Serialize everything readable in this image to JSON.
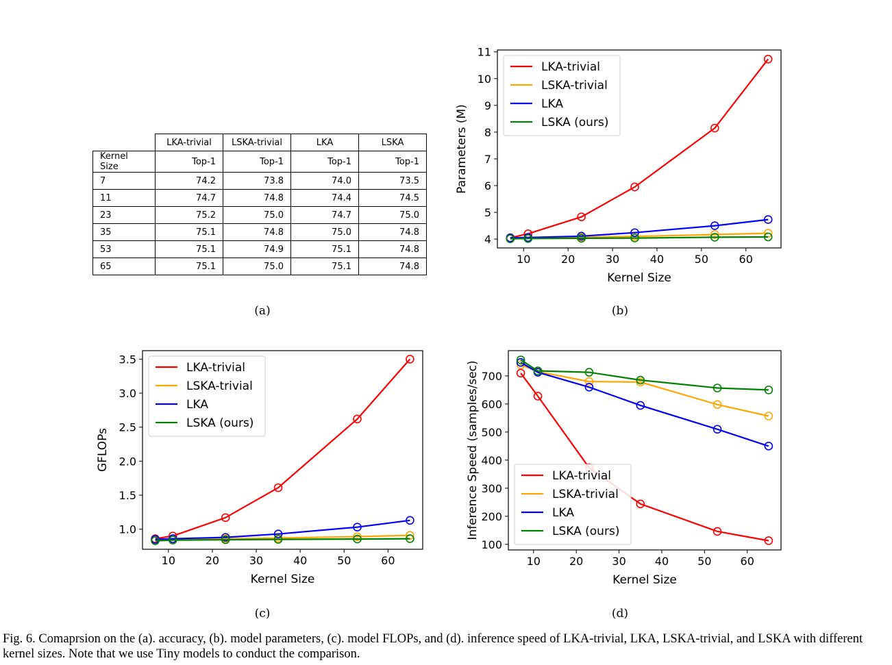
{
  "table": {
    "header": [
      "",
      "LKA-trivial",
      "LSKA-trivial",
      "LKA",
      "LSKA"
    ],
    "subheader": [
      "Kernel Size",
      "Top-1",
      "Top-1",
      "Top-1",
      "Top-1"
    ],
    "rows": [
      [
        "7",
        "74.2",
        "73.8",
        "74.0",
        "73.5"
      ],
      [
        "11",
        "74.7",
        "74.8",
        "74.4",
        "74.5"
      ],
      [
        "23",
        "75.2",
        "75.0",
        "74.7",
        "75.0"
      ],
      [
        "35",
        "75.1",
        "74.8",
        "75.0",
        "74.8"
      ],
      [
        "53",
        "75.1",
        "74.9",
        "75.1",
        "74.8"
      ],
      [
        "65",
        "75.1",
        "75.0",
        "75.1",
        "74.8"
      ]
    ]
  },
  "subfig_labels": {
    "a": "(a)",
    "b": "(b)",
    "c": "(c)",
    "d": "(d)"
  },
  "caption": "Fig. 6.  Comaprsion on the (a). accuracy, (b). model parameters, (c). model FLOPs, and (d). inference speed of LKA-trivial, LKA, LSKA-trivial, and LSKA with different kernel sizes. Note that we use Tiny models to conduct the comparison.",
  "colors": {
    "LKA-trivial": "#ff0000",
    "LSKA-trivial": "#ffa500",
    "LKA": "#0000ff",
    "LSKA (ours)": "#008000"
  },
  "chart_data": [
    {
      "id": "b",
      "type": "line",
      "title": "",
      "xlabel": "Kernel Size",
      "ylabel": "Parameters (M)",
      "x": [
        7,
        11,
        23,
        35,
        53,
        65
      ],
      "xlim": [
        4.1,
        67.9
      ],
      "ylim": [
        3.67,
        11.07
      ],
      "xticks": [
        10,
        20,
        30,
        40,
        50,
        60
      ],
      "yticks": [
        4,
        5,
        6,
        7,
        8,
        9,
        10,
        11
      ],
      "legend": "top-left",
      "series": [
        {
          "name": "LKA-trivial",
          "values": [
            4.05,
            4.2,
            4.83,
            5.95,
            8.15,
            10.73
          ]
        },
        {
          "name": "LSKA-trivial",
          "values": [
            4.02,
            4.04,
            4.07,
            4.1,
            4.17,
            4.22
          ]
        },
        {
          "name": "LKA",
          "values": [
            4.05,
            4.06,
            4.11,
            4.24,
            4.5,
            4.73
          ]
        },
        {
          "name": "LSKA (ours)",
          "values": [
            4.01,
            4.02,
            4.03,
            4.04,
            4.07,
            4.08
          ]
        }
      ]
    },
    {
      "id": "c",
      "type": "line",
      "title": "",
      "xlabel": "Kernel Size",
      "ylabel": "GFLOPs",
      "x": [
        7,
        11,
        23,
        35,
        53,
        65
      ],
      "xlim": [
        4.1,
        67.9
      ],
      "ylim": [
        0.705,
        3.625
      ],
      "xticks": [
        10,
        20,
        30,
        40,
        50,
        60
      ],
      "yticks": [
        1.0,
        1.5,
        2.0,
        2.5,
        3.0,
        3.5
      ],
      "legend": "top-left",
      "series": [
        {
          "name": "LKA-trivial",
          "values": [
            0.86,
            0.9,
            1.17,
            1.61,
            2.62,
            3.5
          ]
        },
        {
          "name": "LSKA-trivial",
          "values": [
            0.84,
            0.85,
            0.86,
            0.87,
            0.89,
            0.91
          ]
        },
        {
          "name": "LKA",
          "values": [
            0.85,
            0.86,
            0.88,
            0.93,
            1.03,
            1.13
          ]
        },
        {
          "name": "LSKA (ours)",
          "values": [
            0.83,
            0.84,
            0.845,
            0.85,
            0.855,
            0.86
          ]
        }
      ]
    },
    {
      "id": "d",
      "type": "line",
      "title": "",
      "xlabel": "Kernel Size",
      "ylabel": "Inference Speed (samples/sec)",
      "x": [
        7,
        11,
        23,
        35,
        53,
        65
      ],
      "xlim": [
        4.1,
        67.9
      ],
      "ylim": [
        80,
        790
      ],
      "xticks": [
        10,
        20,
        30,
        40,
        50,
        60
      ],
      "yticks": [
        100,
        200,
        300,
        400,
        500,
        600,
        700
      ],
      "legend": "bottom-left",
      "series": [
        {
          "name": "LKA-trivial",
          "values": [
            710,
            628,
            373,
            244,
            146,
            113
          ]
        },
        {
          "name": "LSKA-trivial",
          "values": [
            740,
            715,
            680,
            678,
            598,
            557
          ]
        },
        {
          "name": "LKA",
          "values": [
            748,
            713,
            660,
            595,
            510,
            450
          ]
        },
        {
          "name": "LSKA (ours)",
          "values": [
            757,
            718,
            713,
            685,
            657,
            650
          ]
        }
      ]
    }
  ]
}
